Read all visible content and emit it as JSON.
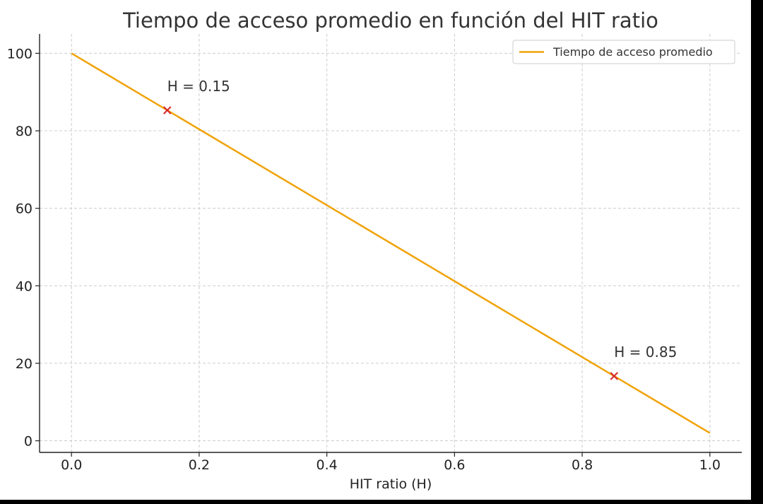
{
  "chart_data": {
    "type": "line",
    "title": "Tiempo de acceso promedio en función del HIT ratio",
    "xlabel": "HIT ratio (H)",
    "ylabel": "",
    "xlim": [
      -0.05,
      1.05
    ],
    "ylim": [
      -3,
      105
    ],
    "x_ticks": [
      0.0,
      0.2,
      0.4,
      0.6,
      0.8,
      1.0
    ],
    "x_tick_labels": [
      "0.0",
      "0.2",
      "0.4",
      "0.6",
      "0.8",
      "1.0"
    ],
    "y_ticks": [
      0,
      20,
      40,
      60,
      80,
      100
    ],
    "y_tick_labels": [
      "0",
      "20",
      "40",
      "60",
      "80",
      "100"
    ],
    "grid": true,
    "legend_position": "top-right",
    "series": [
      {
        "name": "Tiempo de acceso promedio",
        "color": "#f0a30a",
        "x": [
          0.0,
          1.0
        ],
        "y": [
          100,
          2
        ]
      }
    ],
    "markers": [
      {
        "x": 0.15,
        "y": 85.3,
        "color": "#d62728",
        "label": "H = 0.15"
      },
      {
        "x": 0.85,
        "y": 16.7,
        "color": "#d62728",
        "label": "H = 0.85"
      }
    ]
  }
}
